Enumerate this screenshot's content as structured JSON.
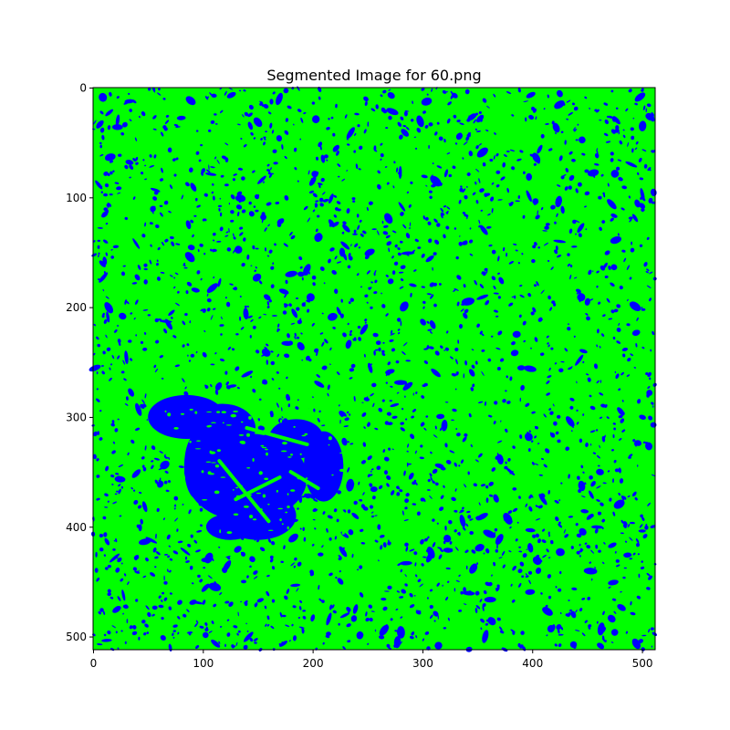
{
  "chart_data": {
    "type": "heatmap",
    "title": "Segmented Image for 60.png",
    "xlabel": "",
    "ylabel": "",
    "xlim": [
      0,
      512
    ],
    "ylim": [
      512,
      0
    ],
    "x_ticks": [
      0,
      100,
      200,
      300,
      400,
      500
    ],
    "y_ticks": [
      0,
      100,
      200,
      300,
      400,
      500
    ],
    "grid": false,
    "legend": "none",
    "classes": [
      {
        "label": "",
        "color": "#00ff00"
      },
      {
        "label": "",
        "color": "#0000ff"
      }
    ],
    "background_color": "#00ff00",
    "foreground_color": "#0000ff",
    "blue_density": 0.33,
    "blue_regions": [
      {
        "shape": "ellipse",
        "cx": 85,
        "cy": 300,
        "rx": 35,
        "ry": 20
      },
      {
        "shape": "ellipse",
        "cx": 118,
        "cy": 310,
        "rx": 30,
        "ry": 22
      },
      {
        "shape": "ellipse",
        "cx": 140,
        "cy": 355,
        "rx": 55,
        "ry": 40
      },
      {
        "shape": "ellipse",
        "cx": 150,
        "cy": 390,
        "rx": 35,
        "ry": 22
      },
      {
        "shape": "ellipse",
        "cx": 125,
        "cy": 400,
        "rx": 22,
        "ry": 12
      },
      {
        "shape": "ellipse",
        "cx": 210,
        "cy": 345,
        "rx": 18,
        "ry": 32
      },
      {
        "shape": "ellipse",
        "cx": 185,
        "cy": 320,
        "rx": 25,
        "ry": 18
      },
      {
        "shape": "ellipse",
        "cx": 95,
        "cy": 345,
        "rx": 12,
        "ry": 30
      }
    ],
    "green_streaks": [
      {
        "x1": 140,
        "y1": 310,
        "x2": 195,
        "y2": 325
      },
      {
        "x1": 115,
        "y1": 340,
        "x2": 160,
        "y2": 395
      },
      {
        "x1": 180,
        "y1": 350,
        "x2": 205,
        "y2": 365
      },
      {
        "x1": 130,
        "y1": 375,
        "x2": 170,
        "y2": 355
      }
    ]
  }
}
